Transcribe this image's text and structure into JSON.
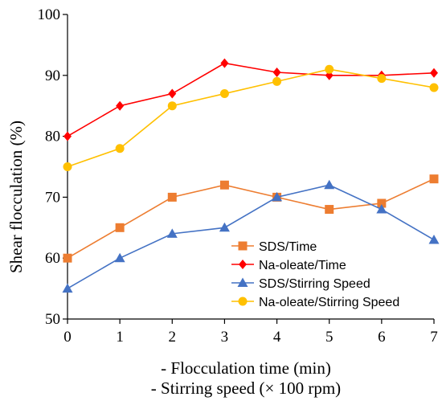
{
  "chart_data": {
    "type": "line",
    "x": [
      0,
      1,
      2,
      3,
      4,
      5,
      6,
      7
    ],
    "xlim": [
      0,
      7
    ],
    "ylim": [
      50,
      100
    ],
    "yticks": [
      50,
      60,
      70,
      80,
      90,
      100
    ],
    "grid": false,
    "legend_position": "bottom-right",
    "ylabel": "Shear flocculation (%)",
    "xlabel_lines": [
      "- Flocculation time (min)",
      "- Stirring speed (× 100 rpm)"
    ],
    "series": [
      {
        "name": "SDS/Time",
        "color": "#ED7D31",
        "marker": "square",
        "values": [
          60,
          65,
          70,
          72,
          70,
          68,
          69,
          73
        ]
      },
      {
        "name": "Na-oleate/Time",
        "color": "#FF0000",
        "marker": "diamond",
        "values": [
          80,
          85,
          87,
          92,
          90.5,
          90,
          90,
          90.4
        ]
      },
      {
        "name": "SDS/Stirring Speed",
        "color": "#4472C4",
        "marker": "triangle",
        "values": [
          55,
          60,
          64,
          65,
          70,
          72,
          68,
          63
        ]
      },
      {
        "name": "Na-oleate/Stirring Speed",
        "color": "#FFC000",
        "marker": "circle",
        "values": [
          75,
          78,
          85,
          87,
          89,
          91,
          89.5,
          88
        ]
      }
    ]
  }
}
